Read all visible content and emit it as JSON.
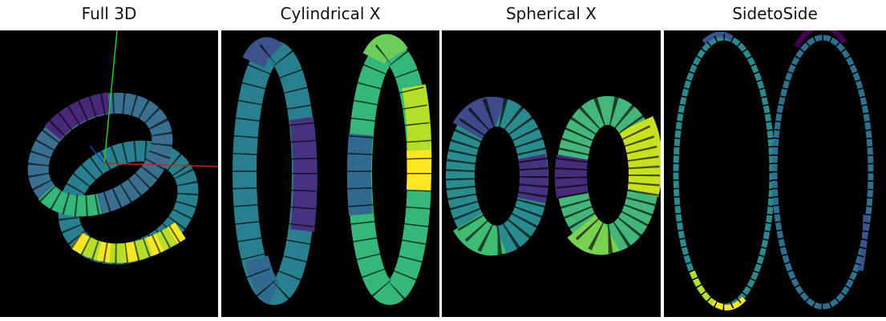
{
  "titles": {
    "full3d": "Full 3D",
    "cylindrical": "Cylindrical X",
    "spherical": "Spherical X",
    "sidetoside": "SidetoSide"
  },
  "colormap": [
    "#440154",
    "#3b528b",
    "#21918c",
    "#5ec962",
    "#fde725"
  ],
  "axes_colors": {
    "x": "#cc2222",
    "y": "#22cc22",
    "z": "#2233cc"
  }
}
